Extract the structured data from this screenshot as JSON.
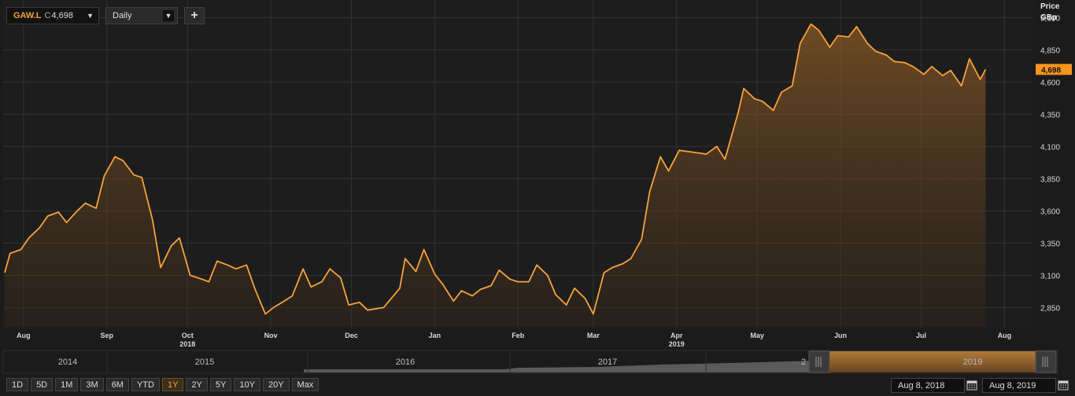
{
  "toolbar": {
    "symbol": "GAW.L",
    "close_prefix": "C",
    "close_value": "4,698",
    "interval": "Daily",
    "add_label": "+",
    "dropdown_icon": "triangle-down-icon"
  },
  "range_buttons": [
    "1D",
    "5D",
    "1M",
    "3M",
    "6M",
    "YTD",
    "1Y",
    "2Y",
    "5Y",
    "10Y",
    "20Y",
    "Max"
  ],
  "active_range": "1Y",
  "date_from": "Aug 8, 2018",
  "date_to": "Aug 8, 2019",
  "navigator": {
    "years": [
      "2014",
      "2015",
      "2016",
      "2017",
      "2",
      "2019"
    ]
  },
  "colors": {
    "line": "#f7a13a",
    "badge_bg": "#f7931e",
    "background": "#1b1b1b"
  },
  "chart_data": {
    "type": "area",
    "axis_title_line1": "Price",
    "axis_title_line2": "GBp",
    "y_ticks": [
      2850,
      3100,
      3350,
      3600,
      3850,
      4100,
      4350,
      4600,
      4850,
      5100
    ],
    "y_tick_labels": [
      "2,850",
      "3,100",
      "3,350",
      "3,600",
      "3,850",
      "4,100",
      "4,350",
      "4,600",
      "4,850",
      "5,100"
    ],
    "ylim": [
      2700,
      5200
    ],
    "last_value": 4698,
    "last_value_label": "4,698",
    "x_labels": [
      {
        "label": "Aug",
        "date": "2018-08-15"
      },
      {
        "label": "Sep",
        "date": "2018-09-15"
      },
      {
        "label": "Oct",
        "date": "2018-10-15",
        "year": "2018"
      },
      {
        "label": "Nov",
        "date": "2018-11-15"
      },
      {
        "label": "Dec",
        "date": "2018-12-15"
      },
      {
        "label": "Jan",
        "date": "2019-01-15"
      },
      {
        "label": "Feb",
        "date": "2019-02-15"
      },
      {
        "label": "Mar",
        "date": "2019-03-15"
      },
      {
        "label": "Apr",
        "date": "2019-04-15",
        "year": "2019"
      },
      {
        "label": "May",
        "date": "2019-05-15"
      },
      {
        "label": "Jun",
        "date": "2019-06-15"
      },
      {
        "label": "Jul",
        "date": "2019-07-15"
      },
      {
        "label": "Aug",
        "date": "2019-08-15"
      }
    ],
    "x": [
      "2018-08-08",
      "2018-08-10",
      "2018-08-14",
      "2018-08-17",
      "2018-08-21",
      "2018-08-24",
      "2018-08-28",
      "2018-08-31",
      "2018-09-04",
      "2018-09-07",
      "2018-09-11",
      "2018-09-14",
      "2018-09-18",
      "2018-09-21",
      "2018-09-25",
      "2018-09-28",
      "2018-10-02",
      "2018-10-05",
      "2018-10-09",
      "2018-10-12",
      "2018-10-16",
      "2018-10-19",
      "2018-10-23",
      "2018-10-26",
      "2018-10-30",
      "2018-11-02",
      "2018-11-06",
      "2018-11-09",
      "2018-11-13",
      "2018-11-16",
      "2018-11-20",
      "2018-11-23",
      "2018-11-27",
      "2018-11-30",
      "2018-12-04",
      "2018-12-07",
      "2018-12-11",
      "2018-12-14",
      "2018-12-18",
      "2018-12-21",
      "2018-12-27",
      "2019-01-02",
      "2019-01-04",
      "2019-01-08",
      "2019-01-11",
      "2019-01-15",
      "2019-01-18",
      "2019-01-22",
      "2019-01-25",
      "2019-01-29",
      "2019-02-01",
      "2019-02-05",
      "2019-02-08",
      "2019-02-12",
      "2019-02-15",
      "2019-02-19",
      "2019-02-22",
      "2019-02-26",
      "2019-03-01",
      "2019-03-05",
      "2019-03-08",
      "2019-03-12",
      "2019-03-15",
      "2019-03-19",
      "2019-03-22",
      "2019-03-26",
      "2019-03-29",
      "2019-04-02",
      "2019-04-05",
      "2019-04-09",
      "2019-04-12",
      "2019-04-16",
      "2019-04-23",
      "2019-04-26",
      "2019-04-30",
      "2019-05-03",
      "2019-05-08",
      "2019-05-10",
      "2019-05-14",
      "2019-05-17",
      "2019-05-21",
      "2019-05-24",
      "2019-05-28",
      "2019-05-31",
      "2019-06-04",
      "2019-06-07",
      "2019-06-11",
      "2019-06-14",
      "2019-06-18",
      "2019-06-21",
      "2019-06-25",
      "2019-06-28",
      "2019-07-02",
      "2019-07-05",
      "2019-07-09",
      "2019-07-12",
      "2019-07-16",
      "2019-07-19",
      "2019-07-23",
      "2019-07-26",
      "2019-07-30",
      "2019-08-02",
      "2019-08-06",
      "2019-08-08"
    ],
    "values": [
      3120,
      3270,
      3300,
      3390,
      3470,
      3560,
      3590,
      3510,
      3600,
      3660,
      3620,
      3870,
      4020,
      3990,
      3880,
      3860,
      3530,
      3160,
      3330,
      3390,
      3100,
      3080,
      3050,
      3210,
      3180,
      3150,
      3180,
      3000,
      2800,
      2850,
      2900,
      2940,
      3150,
      3010,
      3050,
      3150,
      3080,
      2870,
      2890,
      2830,
      2850,
      3000,
      3230,
      3130,
      3300,
      3110,
      3030,
      2900,
      2980,
      2940,
      2990,
      3020,
      3140,
      3070,
      3050,
      3050,
      3180,
      3100,
      2950,
      2870,
      3000,
      2920,
      2800,
      3120,
      3160,
      3190,
      3230,
      3380,
      3750,
      4020,
      3910,
      4070,
      4050,
      4040,
      4100,
      4000,
      4370,
      4550,
      4470,
      4450,
      4380,
      4520,
      4570,
      4900,
      5050,
      5000,
      4870,
      4960,
      4950,
      5030,
      4900,
      4840,
      4810,
      4760,
      4750,
      4720,
      4660,
      4720,
      4650,
      4690,
      4570,
      4780,
      4620,
      4698
    ]
  }
}
